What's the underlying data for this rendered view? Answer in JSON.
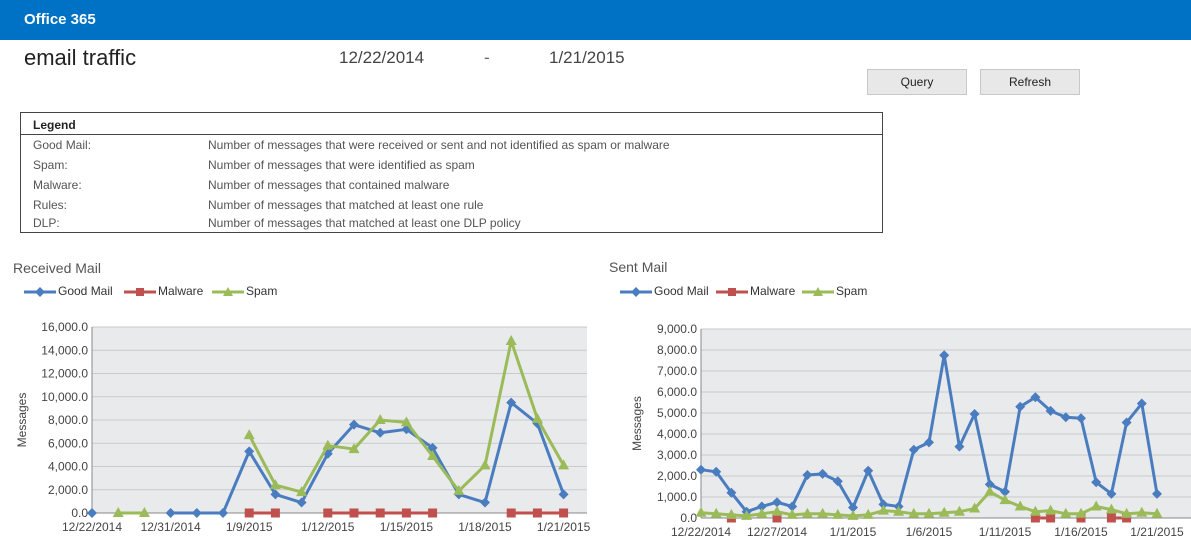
{
  "header": {
    "brand": "Office 365"
  },
  "page": {
    "title": "email traffic",
    "start_date": "12/22/2014",
    "separator": "-",
    "end_date": "1/21/2015"
  },
  "buttons": {
    "query": "Query",
    "refresh": "Refresh"
  },
  "legend": {
    "heading": "Legend",
    "rows": [
      {
        "term": "Good Mail:",
        "desc": "Number of messages that were received or sent and not identified as spam or malware"
      },
      {
        "term": "Spam:",
        "desc": "Number of messages that were identified as spam"
      },
      {
        "term": "Malware:",
        "desc": "Number of messages that contained malware"
      },
      {
        "term": "Rules:",
        "desc": "Number of messages that matched at least one rule"
      },
      {
        "term": "DLP:",
        "desc": "Number of messages that matched at least one DLP policy"
      }
    ]
  },
  "colors": {
    "good": "#4a7dc0",
    "malware": "#c0504d",
    "spam": "#9bbb59",
    "plot_bg": "#e9eaec",
    "topbar": "#0072c6"
  },
  "chart_data": [
    {
      "type": "line",
      "title": "Received Mail",
      "ylabel": "Messages",
      "xlabel": "",
      "legend_position": "top-left",
      "grid": true,
      "ylim": [
        0,
        16000
      ],
      "yticks": [
        "0.0",
        "2,000.0",
        "4,000.0",
        "6,000.0",
        "8,000.0",
        "10,000.0",
        "12,000.0",
        "14,000.0",
        "16,000.0"
      ],
      "xtick_labels": [
        {
          "i": 0,
          "label": "12/22/2014"
        },
        {
          "i": 3,
          "label": "12/31/2014"
        },
        {
          "i": 6,
          "label": "1/9/2015"
        },
        {
          "i": 9,
          "label": "1/12/2015"
        },
        {
          "i": 12,
          "label": "1/15/2015"
        },
        {
          "i": 15,
          "label": "1/18/2015"
        },
        {
          "i": 18,
          "label": "1/21/2015"
        }
      ],
      "n_points": 19,
      "series": [
        {
          "name": "Good Mail",
          "marker": "diamond",
          "values": [
            0,
            null,
            null,
            0,
            0,
            0,
            5300,
            1600,
            900,
            5100,
            7600,
            6900,
            7200,
            5600,
            1600,
            900,
            9500,
            7700,
            1600
          ]
        },
        {
          "name": "Malware",
          "marker": "square",
          "values": [
            null,
            null,
            null,
            null,
            null,
            null,
            0,
            0,
            null,
            0,
            0,
            0,
            0,
            0,
            null,
            null,
            0,
            0,
            0
          ]
        },
        {
          "name": "Spam",
          "marker": "triangle",
          "values": [
            null,
            0,
            0,
            null,
            null,
            null,
            6700,
            2400,
            1800,
            5800,
            5500,
            8000,
            7800,
            4900,
            1900,
            4100,
            14800,
            8100,
            4100
          ]
        }
      ]
    },
    {
      "type": "line",
      "title": "Sent Mail",
      "ylabel": "Messages",
      "xlabel": "",
      "legend_position": "top-left",
      "grid": true,
      "ylim": [
        0,
        9000
      ],
      "yticks": [
        "0.0",
        "1,000.0",
        "2,000.0",
        "3,000.0",
        "4,000.0",
        "5,000.0",
        "6,000.0",
        "7,000.0",
        "8,000.0",
        "9,000.0"
      ],
      "xtick_labels": [
        {
          "i": 0,
          "label": "12/22/2014"
        },
        {
          "i": 5,
          "label": "12/27/2014"
        },
        {
          "i": 10,
          "label": "1/1/2015"
        },
        {
          "i": 15,
          "label": "1/6/2015"
        },
        {
          "i": 20,
          "label": "1/11/2015"
        },
        {
          "i": 25,
          "label": "1/16/2015"
        },
        {
          "i": 30,
          "label": "1/21/2015"
        }
      ],
      "n_points": 31,
      "series": [
        {
          "name": "Good Mail",
          "marker": "diamond",
          "values": [
            2300,
            2200,
            1200,
            300,
            550,
            750,
            550,
            2050,
            2100,
            1750,
            500,
            2250,
            650,
            550,
            3250,
            3600,
            7750,
            3400,
            4950,
            1600,
            1250,
            5300,
            5750,
            5100,
            4800,
            4750,
            1700,
            1150,
            4550,
            5450,
            1150
          ]
        },
        {
          "name": "Malware",
          "marker": "square",
          "values": [
            null,
            null,
            0,
            null,
            null,
            0,
            null,
            null,
            null,
            null,
            null,
            null,
            null,
            null,
            null,
            null,
            null,
            null,
            null,
            null,
            null,
            null,
            0,
            0,
            null,
            0,
            null,
            0,
            0,
            null,
            null
          ]
        },
        {
          "name": "Spam",
          "marker": "triangle",
          "values": [
            250,
            200,
            150,
            100,
            200,
            300,
            150,
            200,
            200,
            150,
            100,
            150,
            350,
            300,
            200,
            200,
            250,
            300,
            450,
            1250,
            850,
            550,
            300,
            350,
            200,
            200,
            550,
            400,
            200,
            250,
            200
          ]
        }
      ]
    }
  ]
}
